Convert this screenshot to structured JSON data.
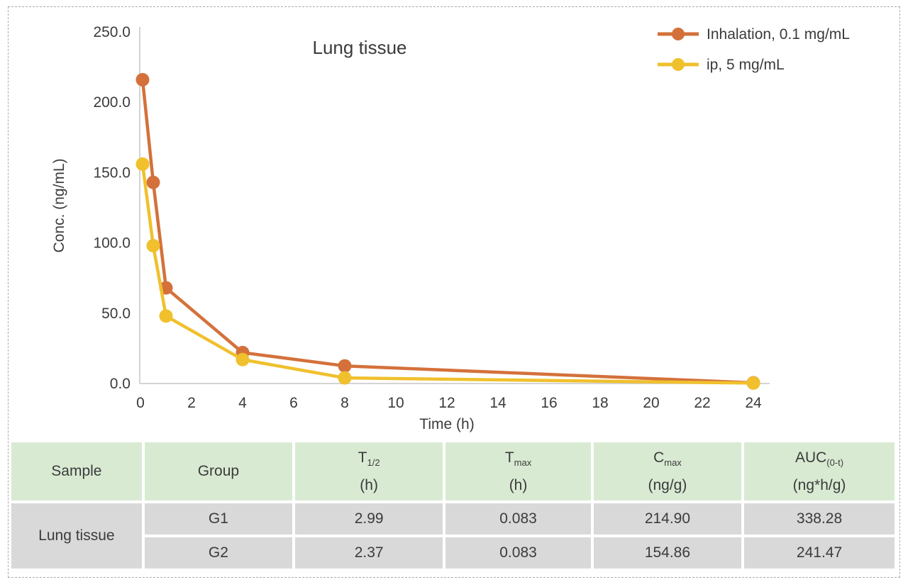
{
  "chart_data": {
    "type": "line",
    "title": "Lung tissue",
    "xlabel": "Time (h)",
    "ylabel": "Conc. (ng/mL)",
    "x": [
      0.083,
      0.5,
      1,
      4,
      8,
      24
    ],
    "series": [
      {
        "name": "Inhalation, 0.1 mg/mL",
        "color": "#d4713b",
        "values": [
          216,
          143,
          68,
          22,
          12.5,
          0.5
        ]
      },
      {
        "name": "ip, 5 mg/mL",
        "color": "#f0c02d",
        "values": [
          156,
          98,
          48,
          17,
          4,
          0.3
        ]
      }
    ],
    "xlim": [
      0,
      24
    ],
    "ylim": [
      0,
      250
    ],
    "x_ticks": [
      0,
      2,
      4,
      6,
      8,
      10,
      12,
      14,
      16,
      18,
      20,
      22,
      24
    ],
    "y_ticks": [
      "0.0",
      "50.0",
      "100.0",
      "150.0",
      "200.0",
      "250.0"
    ],
    "grid": false,
    "legend_position": "top-right",
    "axis_color": "#c6c6c6",
    "text_color": "#3b3b3b"
  },
  "table": {
    "headers": [
      {
        "label": "Sample"
      },
      {
        "label": "Group"
      },
      {
        "sym": "T",
        "sub": "1/2",
        "unit": "(h)"
      },
      {
        "sym": "T",
        "sub": "max",
        "unit": "(h)"
      },
      {
        "sym": "C",
        "sub": "max",
        "unit": "(ng/g)"
      },
      {
        "sym": "AUC",
        "sub": "(0-t)",
        "unit": "(ng*h/g)"
      }
    ],
    "sample": "Lung tissue",
    "rows": [
      {
        "group": "G1",
        "t12": "2.99",
        "tmax": "0.083",
        "cmax": "214.90",
        "auc": "338.28"
      },
      {
        "group": "G2",
        "t12": "2.37",
        "tmax": "0.083",
        "cmax": "154.86",
        "auc": "241.47"
      }
    ],
    "colors": {
      "header_bg": "#d9ead3",
      "body_bg": "#d9d9d9"
    }
  }
}
